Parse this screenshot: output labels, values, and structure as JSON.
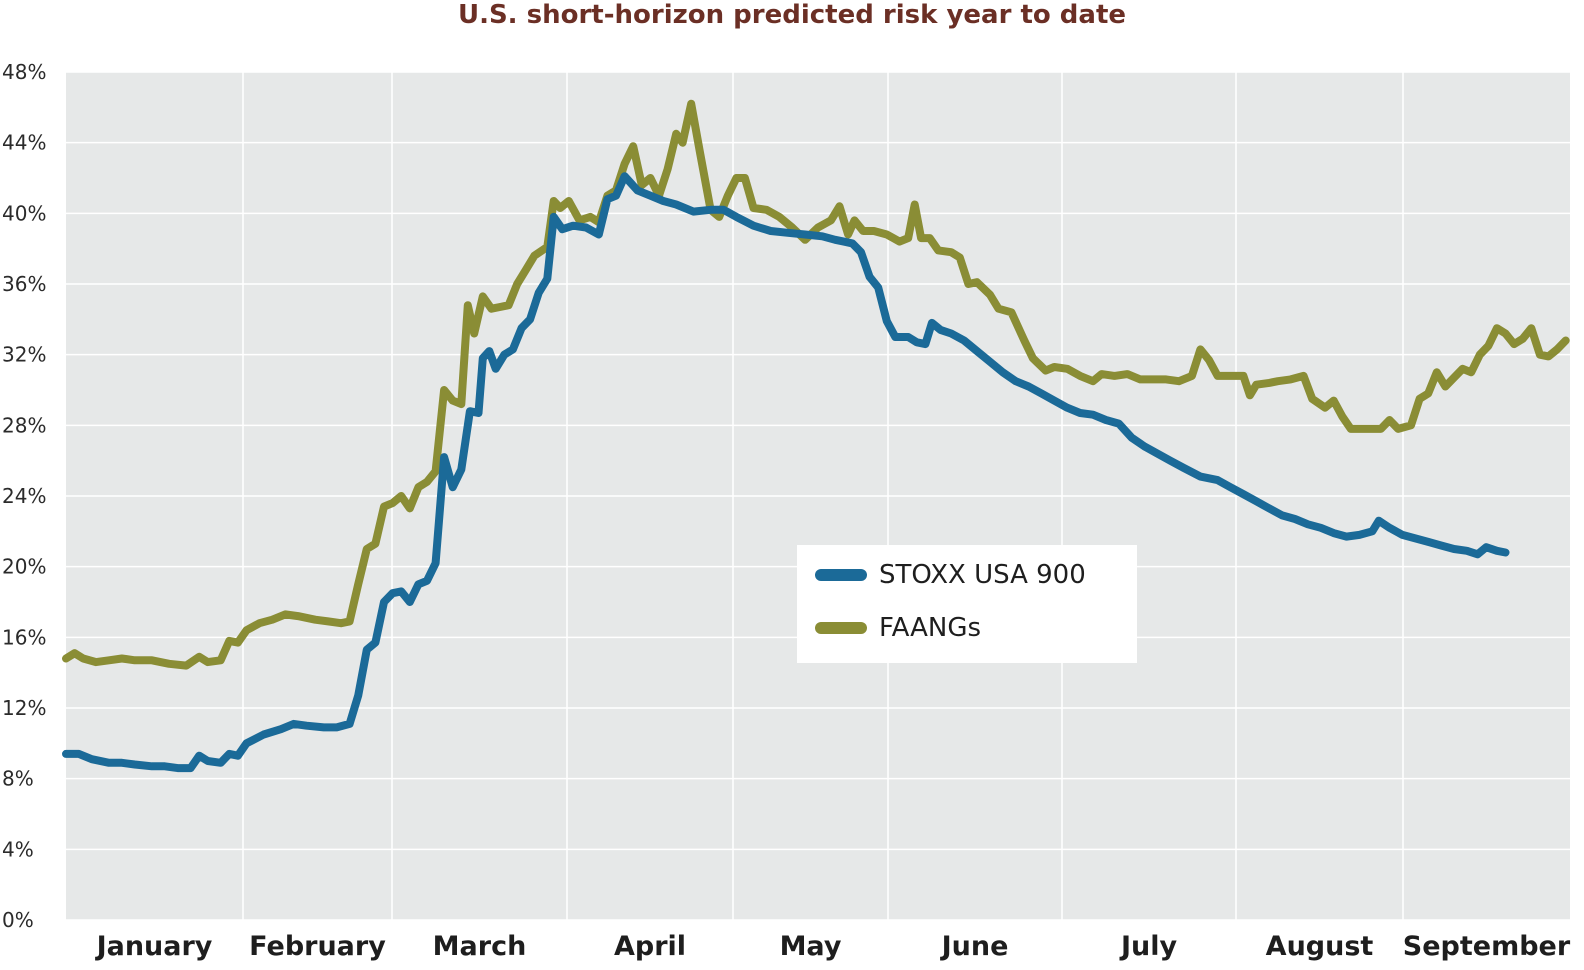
{
  "chart_data": {
    "type": "line",
    "title": "U.S. short-horizon predicted risk year to date",
    "xlabel": "",
    "ylabel": "",
    "ylim": [
      0,
      48
    ],
    "yticks": [
      "0%",
      "4%",
      "8%",
      "12%",
      "16%",
      "20%",
      "24%",
      "28%",
      "32%",
      "36%",
      "40%",
      "44%",
      "48%"
    ],
    "ytick_values": [
      0,
      4,
      8,
      12,
      16,
      20,
      24,
      28,
      32,
      36,
      40,
      44,
      48
    ],
    "categories": [
      "January",
      "February",
      "March",
      "April",
      "May",
      "June",
      "July",
      "August",
      "September"
    ],
    "grid": true,
    "legend_position": "center-right",
    "colors": {
      "background": "#e6e8e8",
      "grid": "#ffffff",
      "title": "#6b2f25"
    },
    "series": [
      {
        "name": "STOXX USA 900",
        "color": "#1b6a98",
        "points": [
          [
            0.0,
            9.4
          ],
          [
            0.3,
            9.4
          ],
          [
            0.6,
            9.1
          ],
          [
            1.0,
            8.9
          ],
          [
            1.3,
            8.9
          ],
          [
            1.6,
            8.8
          ],
          [
            2.0,
            8.7
          ],
          [
            2.3,
            8.7
          ],
          [
            2.6,
            8.6
          ],
          [
            2.9,
            8.6
          ],
          [
            3.1,
            9.3
          ],
          [
            3.3,
            9.0
          ],
          [
            3.6,
            8.9
          ],
          [
            3.8,
            9.4
          ],
          [
            4.0,
            9.3
          ],
          [
            4.2,
            10.0
          ],
          [
            4.6,
            10.5
          ],
          [
            5.0,
            10.8
          ],
          [
            5.3,
            11.1
          ],
          [
            5.6,
            11.0
          ],
          [
            6.0,
            10.9
          ],
          [
            6.3,
            10.9
          ],
          [
            6.6,
            11.1
          ],
          [
            6.8,
            12.7
          ],
          [
            7.0,
            15.3
          ],
          [
            7.2,
            15.7
          ],
          [
            7.4,
            18.0
          ],
          [
            7.6,
            18.5
          ],
          [
            7.8,
            18.6
          ],
          [
            8.0,
            18.0
          ],
          [
            8.2,
            19.0
          ],
          [
            8.4,
            19.2
          ],
          [
            8.6,
            20.2
          ],
          [
            8.8,
            26.2
          ],
          [
            9.0,
            24.5
          ],
          [
            9.2,
            25.5
          ],
          [
            9.4,
            28.8
          ],
          [
            9.6,
            28.7
          ],
          [
            9.7,
            31.8
          ],
          [
            9.85,
            32.2
          ],
          [
            10.0,
            31.2
          ],
          [
            10.2,
            32.0
          ],
          [
            10.4,
            32.3
          ],
          [
            10.6,
            33.5
          ],
          [
            10.8,
            34.0
          ],
          [
            11.0,
            35.5
          ],
          [
            11.2,
            36.3
          ],
          [
            11.35,
            39.8
          ],
          [
            11.55,
            39.1
          ],
          [
            11.8,
            39.3
          ],
          [
            12.1,
            39.2
          ],
          [
            12.4,
            38.8
          ],
          [
            12.6,
            40.8
          ],
          [
            12.8,
            41.0
          ],
          [
            13.0,
            42.1
          ],
          [
            13.3,
            41.3
          ],
          [
            13.6,
            41.0
          ],
          [
            13.9,
            40.7
          ],
          [
            14.2,
            40.5
          ],
          [
            14.6,
            40.1
          ],
          [
            15.0,
            40.2
          ],
          [
            15.3,
            40.2
          ],
          [
            15.6,
            39.8
          ],
          [
            16.0,
            39.3
          ],
          [
            16.4,
            39.0
          ],
          [
            16.8,
            38.9
          ],
          [
            17.2,
            38.8
          ],
          [
            17.6,
            38.7
          ],
          [
            17.9,
            38.5
          ],
          [
            18.1,
            38.4
          ],
          [
            18.3,
            38.3
          ],
          [
            18.5,
            37.8
          ],
          [
            18.7,
            36.4
          ],
          [
            18.9,
            35.8
          ],
          [
            19.1,
            33.9
          ],
          [
            19.3,
            33.0
          ],
          [
            19.6,
            33.0
          ],
          [
            19.8,
            32.7
          ],
          [
            20.0,
            32.6
          ],
          [
            20.15,
            33.8
          ],
          [
            20.35,
            33.4
          ],
          [
            20.6,
            33.2
          ],
          [
            20.9,
            32.8
          ],
          [
            21.2,
            32.2
          ],
          [
            21.5,
            31.6
          ],
          [
            21.8,
            31.0
          ],
          [
            22.1,
            30.5
          ],
          [
            22.4,
            30.2
          ],
          [
            22.7,
            29.8
          ],
          [
            23.0,
            29.4
          ],
          [
            23.3,
            29.0
          ],
          [
            23.6,
            28.7
          ],
          [
            23.9,
            28.6
          ],
          [
            24.2,
            28.3
          ],
          [
            24.5,
            28.1
          ],
          [
            24.8,
            27.3
          ],
          [
            25.1,
            26.8
          ],
          [
            25.4,
            26.4
          ],
          [
            25.7,
            26.0
          ],
          [
            26.0,
            25.6
          ],
          [
            26.4,
            25.1
          ],
          [
            26.8,
            24.9
          ],
          [
            27.1,
            24.5
          ],
          [
            27.4,
            24.1
          ],
          [
            27.7,
            23.7
          ],
          [
            28.0,
            23.3
          ],
          [
            28.3,
            22.9
          ],
          [
            28.6,
            22.7
          ],
          [
            28.9,
            22.4
          ],
          [
            29.2,
            22.2
          ],
          [
            29.5,
            21.9
          ],
          [
            29.8,
            21.7
          ],
          [
            30.1,
            21.8
          ],
          [
            30.4,
            22.0
          ],
          [
            30.55,
            22.6
          ],
          [
            30.8,
            22.2
          ],
          [
            31.1,
            21.8
          ],
          [
            31.4,
            21.6
          ],
          [
            31.7,
            21.4
          ],
          [
            32.0,
            21.2
          ],
          [
            32.3,
            21.0
          ],
          [
            32.6,
            20.9
          ],
          [
            32.85,
            20.7
          ],
          [
            33.05,
            21.1
          ],
          [
            33.3,
            20.9
          ],
          [
            33.5,
            20.8
          ]
        ]
      },
      {
        "name": "FAANGs",
        "color": "#8a8d35",
        "points": [
          [
            0.0,
            14.8
          ],
          [
            0.2,
            15.1
          ],
          [
            0.4,
            14.8
          ],
          [
            0.7,
            14.6
          ],
          [
            1.0,
            14.7
          ],
          [
            1.3,
            14.8
          ],
          [
            1.6,
            14.7
          ],
          [
            2.0,
            14.7
          ],
          [
            2.4,
            14.5
          ],
          [
            2.8,
            14.4
          ],
          [
            3.1,
            14.9
          ],
          [
            3.3,
            14.6
          ],
          [
            3.6,
            14.7
          ],
          [
            3.8,
            15.8
          ],
          [
            4.0,
            15.7
          ],
          [
            4.2,
            16.4
          ],
          [
            4.5,
            16.8
          ],
          [
            4.8,
            17.0
          ],
          [
            5.1,
            17.3
          ],
          [
            5.4,
            17.2
          ],
          [
            5.8,
            17.0
          ],
          [
            6.1,
            16.9
          ],
          [
            6.4,
            16.8
          ],
          [
            6.6,
            16.9
          ],
          [
            6.8,
            19.0
          ],
          [
            7.0,
            21.0
          ],
          [
            7.2,
            21.3
          ],
          [
            7.4,
            23.4
          ],
          [
            7.6,
            23.6
          ],
          [
            7.8,
            24.0
          ],
          [
            8.0,
            23.3
          ],
          [
            8.2,
            24.5
          ],
          [
            8.4,
            24.8
          ],
          [
            8.6,
            25.4
          ],
          [
            8.8,
            30.0
          ],
          [
            9.0,
            29.4
          ],
          [
            9.2,
            29.2
          ],
          [
            9.35,
            34.8
          ],
          [
            9.5,
            33.2
          ],
          [
            9.7,
            35.3
          ],
          [
            9.9,
            34.6
          ],
          [
            10.1,
            34.7
          ],
          [
            10.3,
            34.8
          ],
          [
            10.5,
            36.0
          ],
          [
            10.7,
            36.8
          ],
          [
            10.9,
            37.6
          ],
          [
            11.2,
            38.1
          ],
          [
            11.35,
            40.7
          ],
          [
            11.5,
            40.3
          ],
          [
            11.7,
            40.7
          ],
          [
            11.95,
            39.6
          ],
          [
            12.2,
            39.8
          ],
          [
            12.4,
            39.5
          ],
          [
            12.6,
            41.0
          ],
          [
            12.8,
            41.3
          ],
          [
            13.0,
            42.8
          ],
          [
            13.2,
            43.8
          ],
          [
            13.4,
            41.6
          ],
          [
            13.6,
            42.0
          ],
          [
            13.8,
            41.0
          ],
          [
            14.0,
            42.5
          ],
          [
            14.2,
            44.5
          ],
          [
            14.35,
            44.0
          ],
          [
            14.55,
            46.2
          ],
          [
            14.75,
            43.5
          ],
          [
            15.0,
            40.2
          ],
          [
            15.2,
            39.8
          ],
          [
            15.4,
            41.0
          ],
          [
            15.6,
            42.0
          ],
          [
            15.8,
            42.0
          ],
          [
            16.0,
            40.3
          ],
          [
            16.3,
            40.2
          ],
          [
            16.6,
            39.8
          ],
          [
            16.9,
            39.2
          ],
          [
            17.2,
            38.5
          ],
          [
            17.5,
            39.2
          ],
          [
            17.8,
            39.6
          ],
          [
            18.0,
            40.4
          ],
          [
            18.2,
            38.8
          ],
          [
            18.35,
            39.6
          ],
          [
            18.55,
            39.0
          ],
          [
            18.8,
            39.0
          ],
          [
            19.1,
            38.8
          ],
          [
            19.4,
            38.4
          ],
          [
            19.6,
            38.6
          ],
          [
            19.75,
            40.5
          ],
          [
            19.9,
            38.6
          ],
          [
            20.1,
            38.6
          ],
          [
            20.3,
            37.9
          ],
          [
            20.6,
            37.8
          ],
          [
            20.8,
            37.5
          ],
          [
            21.0,
            36.0
          ],
          [
            21.2,
            36.1
          ],
          [
            21.5,
            35.4
          ],
          [
            21.7,
            34.6
          ],
          [
            22.0,
            34.4
          ],
          [
            22.3,
            32.8
          ],
          [
            22.5,
            31.8
          ],
          [
            22.8,
            31.1
          ],
          [
            23.0,
            31.3
          ],
          [
            23.3,
            31.2
          ],
          [
            23.6,
            30.8
          ],
          [
            23.9,
            30.5
          ],
          [
            24.1,
            30.9
          ],
          [
            24.4,
            30.8
          ],
          [
            24.7,
            30.9
          ],
          [
            25.0,
            30.6
          ],
          [
            25.3,
            30.6
          ],
          [
            25.6,
            30.6
          ],
          [
            25.9,
            30.5
          ],
          [
            26.2,
            30.8
          ],
          [
            26.4,
            32.3
          ],
          [
            26.6,
            31.7
          ],
          [
            26.8,
            30.8
          ],
          [
            27.1,
            30.8
          ],
          [
            27.4,
            30.8
          ],
          [
            27.55,
            29.7
          ],
          [
            27.7,
            30.3
          ],
          [
            28.0,
            30.4
          ],
          [
            28.2,
            30.5
          ],
          [
            28.5,
            30.6
          ],
          [
            28.8,
            30.8
          ],
          [
            29.0,
            29.5
          ],
          [
            29.3,
            29.0
          ],
          [
            29.5,
            29.4
          ],
          [
            29.7,
            28.5
          ],
          [
            29.9,
            27.8
          ],
          [
            30.1,
            27.8
          ],
          [
            30.4,
            27.8
          ],
          [
            30.6,
            27.8
          ],
          [
            30.8,
            28.3
          ],
          [
            31.0,
            27.8
          ],
          [
            31.3,
            28.0
          ],
          [
            31.5,
            29.5
          ],
          [
            31.7,
            29.8
          ],
          [
            31.9,
            31.0
          ],
          [
            32.1,
            30.2
          ],
          [
            32.3,
            30.7
          ],
          [
            32.5,
            31.2
          ],
          [
            32.7,
            31.0
          ],
          [
            32.9,
            32.0
          ],
          [
            33.1,
            32.5
          ],
          [
            33.3,
            33.5
          ],
          [
            33.5,
            33.2
          ],
          [
            33.7,
            32.6
          ],
          [
            33.9,
            32.9
          ],
          [
            34.1,
            33.5
          ],
          [
            34.3,
            32.0
          ],
          [
            34.5,
            31.9
          ],
          [
            34.7,
            32.3
          ],
          [
            34.9,
            32.8
          ]
        ]
      }
    ]
  }
}
